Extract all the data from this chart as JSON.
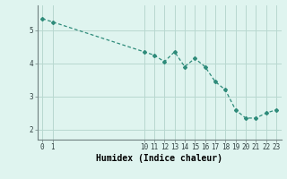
{
  "x": [
    0,
    1,
    10,
    11,
    12,
    13,
    14,
    15,
    16,
    17,
    18,
    19,
    20,
    21,
    22,
    23
  ],
  "y": [
    5.35,
    5.25,
    4.35,
    4.25,
    4.05,
    4.35,
    3.9,
    4.15,
    3.9,
    3.45,
    3.2,
    2.6,
    2.35,
    2.35,
    2.5,
    2.6
  ],
  "ylim": [
    1.7,
    5.75
  ],
  "xlim": [
    -0.5,
    23.5
  ],
  "yticks": [
    2,
    3,
    4,
    5
  ],
  "xticks": [
    0,
    1,
    10,
    11,
    12,
    13,
    14,
    15,
    16,
    17,
    18,
    19,
    20,
    21,
    22,
    23
  ],
  "xlabel": "Humidex (Indice chaleur)",
  "line_color": "#2e8b7a",
  "bg_color": "#dff4ef",
  "grid_color": "#b8d8d0",
  "tick_fontsize": 5.5,
  "label_fontsize": 7,
  "marker": "D",
  "marker_size": 2.0
}
